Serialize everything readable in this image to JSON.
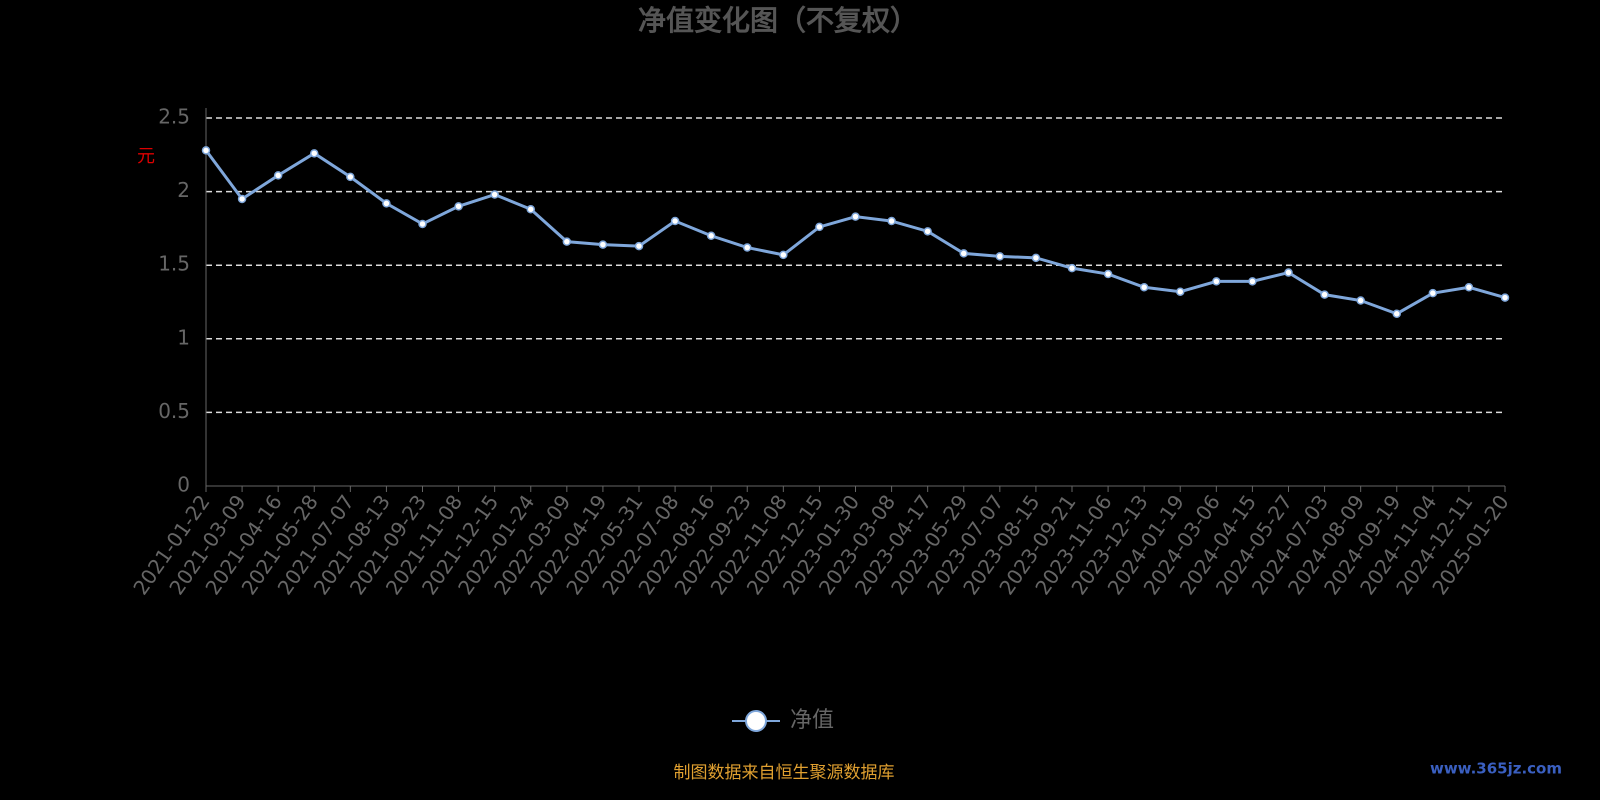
{
  "chart_data": {
    "type": "line",
    "title": "净值变化图（不复权）",
    "y_label": "元",
    "categories": [
      "2021-01-22",
      "2021-03-09",
      "2021-04-16",
      "2021-05-28",
      "2021-07-07",
      "2021-08-13",
      "2021-09-23",
      "2021-11-08",
      "2021-12-15",
      "2022-01-24",
      "2022-03-09",
      "2022-04-19",
      "2022-05-31",
      "2022-07-08",
      "2022-08-16",
      "2022-09-23",
      "2022-11-08",
      "2022-12-15",
      "2023-01-30",
      "2023-03-08",
      "2023-04-17",
      "2023-05-29",
      "2023-07-07",
      "2023-08-15",
      "2023-09-21",
      "2023-11-06",
      "2023-12-13",
      "2024-01-19",
      "2024-03-06",
      "2024-04-15",
      "2024-05-27",
      "2024-07-03",
      "2024-08-09",
      "2024-09-19",
      "2024-11-04",
      "2024-12-11",
      "2025-01-20"
    ],
    "series": [
      {
        "name": "净值",
        "color": "#7fa7db",
        "values": [
          2.28,
          1.95,
          2.11,
          2.26,
          2.1,
          1.92,
          1.78,
          1.9,
          1.98,
          1.88,
          1.66,
          1.64,
          1.63,
          1.8,
          1.7,
          1.62,
          1.57,
          1.76,
          1.83,
          1.8,
          1.73,
          1.58,
          1.56,
          1.55,
          1.48,
          1.44,
          1.35,
          1.32,
          1.39,
          1.39,
          1.45,
          1.3,
          1.26,
          1.17,
          1.31,
          1.35,
          1.28
        ]
      }
    ],
    "ylim": [
      0,
      2.5
    ],
    "yticks": [
      0,
      0.5,
      1,
      1.5,
      2,
      2.5
    ],
    "grid": true,
    "footer": "制图数据来自恒生聚源数据库",
    "watermark": "www.365jz.com"
  }
}
